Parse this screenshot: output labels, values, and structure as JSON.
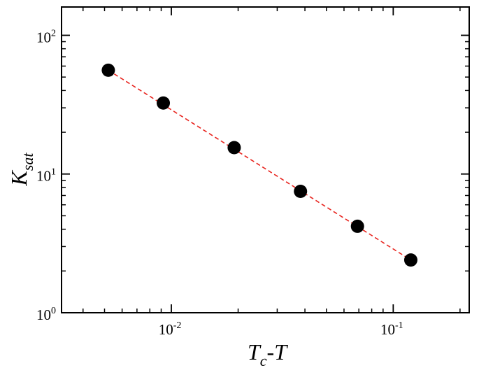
{
  "chart_data": {
    "type": "scatter",
    "xscale": "log",
    "yscale": "log",
    "xlim": [
      0.0032,
      0.22
    ],
    "ylim": [
      1,
      160
    ],
    "grid": false,
    "legend": "none",
    "xlabel": {
      "main": "T",
      "sub": "c",
      "rest": "-T"
    },
    "ylabel": {
      "main": "K",
      "sub": "sat"
    },
    "xticks": [
      {
        "value": 0.01,
        "base": "10",
        "exp": "-2"
      },
      {
        "value": 0.1,
        "base": "10",
        "exp": "-1"
      }
    ],
    "yticks": [
      {
        "value": 1,
        "base": "10",
        "exp": "0"
      },
      {
        "value": 10,
        "base": "10",
        "exp": "1"
      },
      {
        "value": 100,
        "base": "10",
        "exp": "2"
      }
    ],
    "series": [
      {
        "points": [
          {
            "x": 0.0052,
            "y": 56
          },
          {
            "x": 0.0092,
            "y": 32.5
          },
          {
            "x": 0.0192,
            "y": 15.5
          },
          {
            "x": 0.0382,
            "y": 7.5
          },
          {
            "x": 0.069,
            "y": 4.2
          },
          {
            "x": 0.12,
            "y": 2.4
          }
        ],
        "marker": "circle",
        "color": "#000000"
      }
    ],
    "fit_line": {
      "x_start": 0.0052,
      "y_start": 56,
      "x_end": 0.12,
      "y_end": 2.4,
      "color": "#e8251f",
      "style": "dashed"
    }
  }
}
